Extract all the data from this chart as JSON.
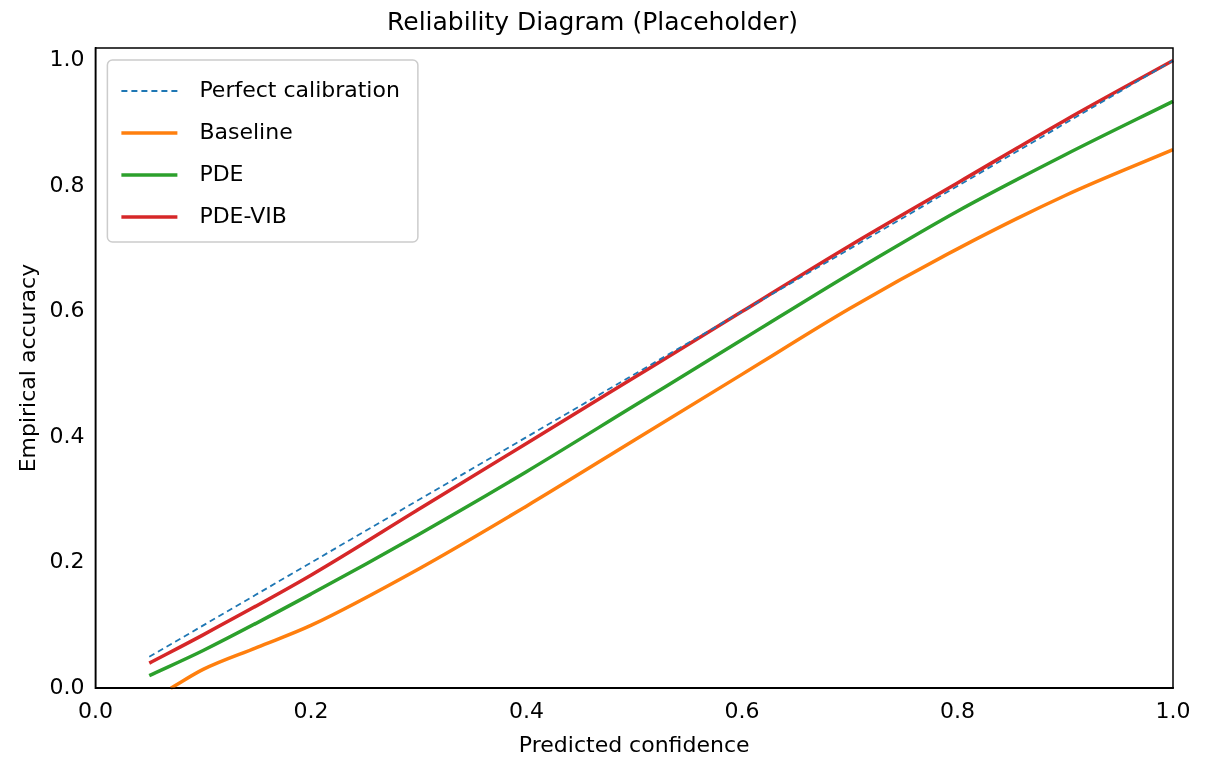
{
  "chart_data": {
    "type": "line",
    "title": "Reliability Diagram (Placeholder)",
    "xlabel": "Predicted confidence",
    "ylabel": "Empirical accuracy",
    "xlim": [
      0,
      1
    ],
    "ylim": [
      0,
      1.02
    ],
    "xticks": [
      {
        "value": 0,
        "label": "0.0"
      },
      0.2,
      0.4,
      0.6,
      0.8,
      {
        "value": 1,
        "label": "1.0"
      }
    ],
    "yticks": [
      {
        "value": 0,
        "label": "0.0"
      },
      0.2,
      0.4,
      0.6,
      0.8,
      {
        "value": 1,
        "label": "1.0"
      }
    ],
    "grid": false,
    "legend": "top left",
    "marker": "none",
    "series": [
      {
        "name": "Perfect calibration",
        "color": "#1f77b4",
        "line_style": "dashed",
        "x": [
          0.05,
          1
        ],
        "values": [
          0.05,
          1
        ]
      },
      {
        "name": "Baseline",
        "color": "#ff7f0e",
        "line_style": "solid",
        "x": [
          0.07,
          0.1,
          0.15,
          0.2,
          0.3,
          0.4,
          0.5,
          0.6,
          0.7,
          0.8,
          0.9,
          1.0
        ],
        "values": [
          0,
          0.03,
          0.065,
          0.1,
          0.19,
          0.29,
          0.395,
          0.5,
          0.605,
          0.7,
          0.785,
          0.858
        ]
      },
      {
        "name": "PDE",
        "color": "#2ca02c",
        "line_style": "solid",
        "x": [
          0.05,
          0.1,
          0.2,
          0.3,
          0.4,
          0.5,
          0.6,
          0.7,
          0.8,
          0.9,
          1.0
        ],
        "values": [
          0.02,
          0.06,
          0.15,
          0.245,
          0.345,
          0.45,
          0.555,
          0.66,
          0.76,
          0.85,
          0.935
        ]
      },
      {
        "name": "PDE-VIB",
        "color": "#d62728",
        "line_style": "solid",
        "x": [
          0.05,
          0.1,
          0.2,
          0.3,
          0.4,
          0.5,
          0.6,
          0.7,
          0.8,
          0.9,
          1.0
        ],
        "values": [
          0.04,
          0.085,
          0.18,
          0.285,
          0.39,
          0.495,
          0.6,
          0.705,
          0.805,
          0.905,
          1.0
        ]
      }
    ]
  }
}
